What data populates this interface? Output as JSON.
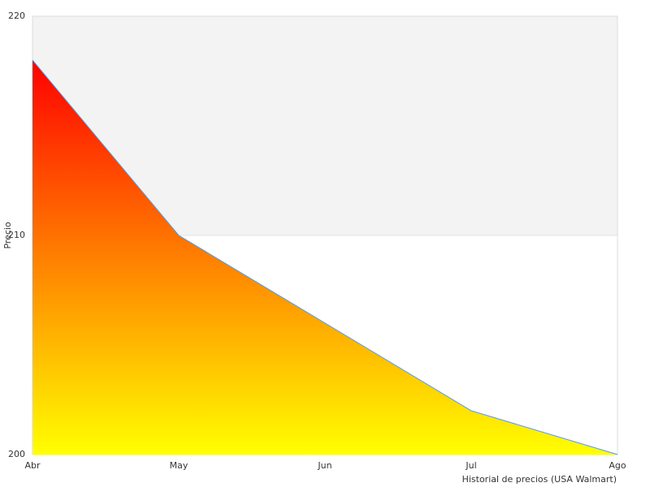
{
  "chart_data": {
    "type": "area",
    "y_label": "Precio",
    "x_label": "Historial de precios (USA Walmart)",
    "categories": [
      "Abr",
      "May",
      "Jun",
      "Jul",
      "Ago"
    ],
    "values": [
      218,
      210,
      206,
      202,
      200
    ],
    "ylim": [
      200,
      220
    ],
    "yticks": [
      200,
      210,
      220
    ],
    "fill_gradient": [
      "#ff0000",
      "#ffff00"
    ],
    "line_color": "#5b9bd5",
    "band_colors": [
      "#ffffff",
      "#f3f3f3"
    ]
  }
}
